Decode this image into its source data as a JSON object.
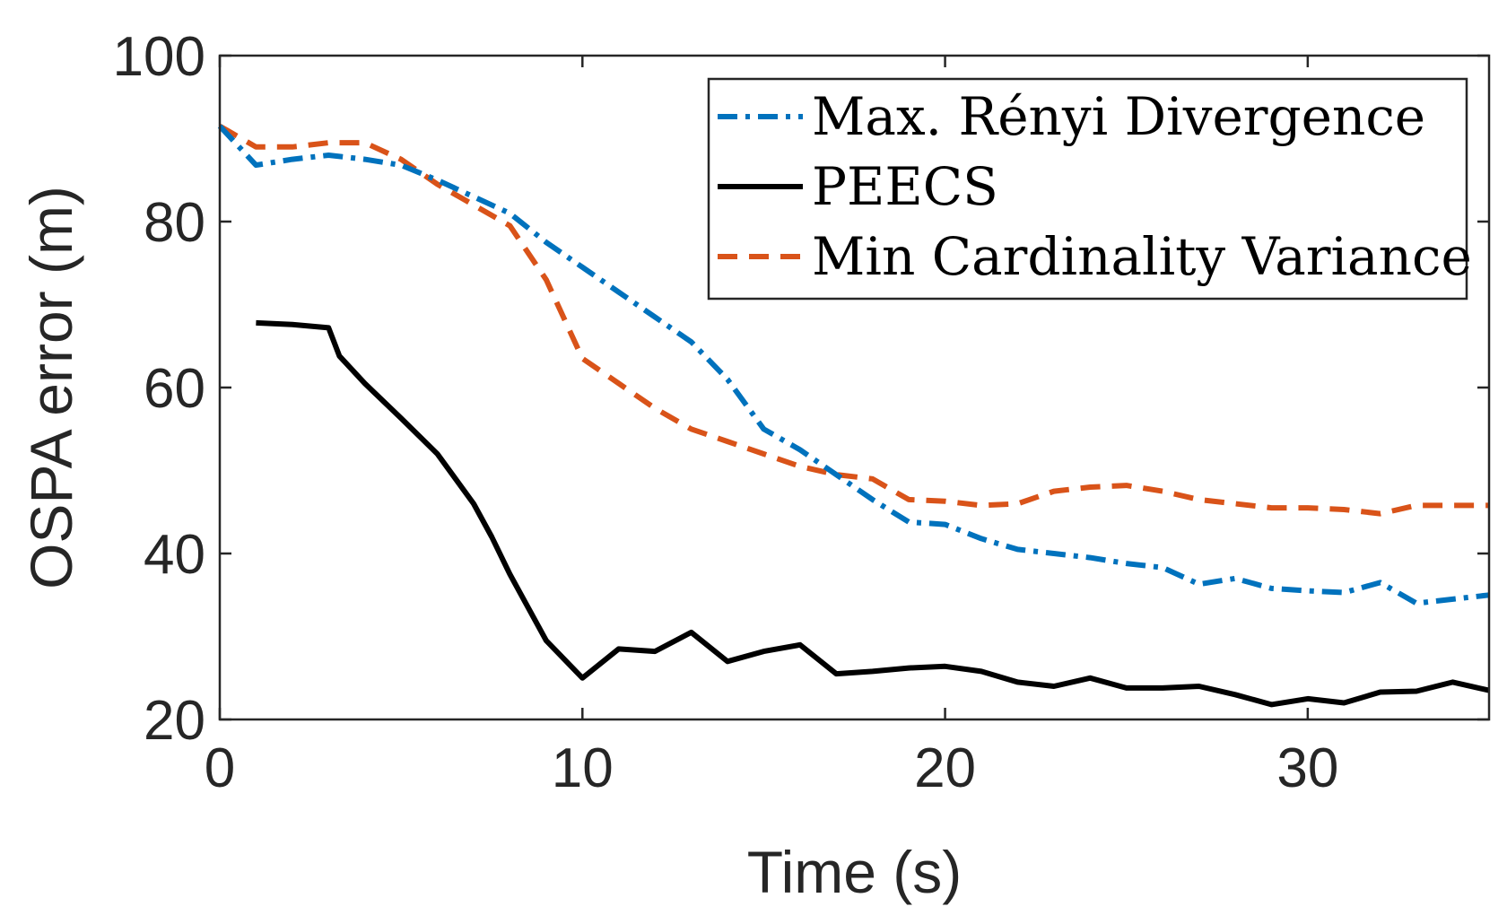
{
  "chart_data": {
    "type": "line",
    "title": "",
    "xlabel": "Time (s)",
    "ylabel": "OSPA error (m)",
    "xlim": [
      0,
      35
    ],
    "ylim": [
      20,
      100
    ],
    "xticks": [
      0,
      10,
      20,
      30
    ],
    "yticks": [
      20,
      40,
      60,
      80,
      100
    ],
    "grid": false,
    "legend_position": "top-right",
    "series": [
      {
        "name": "Max. Rényi Divergence",
        "color": "#0072BD",
        "style": "dash-dot",
        "x": [
          0,
          1,
          2,
          3,
          4,
          5,
          6,
          7,
          8,
          9,
          10,
          11,
          12,
          13,
          14,
          15,
          16,
          17,
          18,
          19,
          20,
          21,
          22,
          23,
          24,
          25,
          26,
          27,
          28,
          29,
          30,
          31,
          32,
          33,
          34,
          35
        ],
        "y": [
          91.5,
          86.8,
          87.5,
          88.0,
          87.5,
          86.8,
          85.0,
          83.0,
          81.0,
          77.5,
          74.5,
          71.5,
          68.5,
          65.5,
          61.0,
          55.0,
          52.5,
          49.5,
          46.5,
          43.8,
          43.5,
          41.8,
          40.5,
          40.0,
          39.5,
          38.8,
          38.3,
          36.3,
          37.0,
          35.8,
          35.5,
          35.3,
          36.5,
          34.0,
          34.5,
          35.0
        ]
      },
      {
        "name": "PEECS",
        "color": "#000000",
        "style": "solid",
        "x": [
          1,
          2,
          3,
          3.3,
          4,
          5,
          6,
          7,
          7.5,
          8,
          9,
          10,
          11,
          12,
          13,
          14,
          15,
          16,
          17,
          18,
          19,
          20,
          21,
          22,
          23,
          24,
          25,
          26,
          27,
          28,
          29,
          30,
          31,
          32,
          33,
          34,
          35
        ],
        "y": [
          67.8,
          67.6,
          67.2,
          63.8,
          60.5,
          56.3,
          52.0,
          46.0,
          42.0,
          37.5,
          29.5,
          25.0,
          28.5,
          28.2,
          30.5,
          27.0,
          28.2,
          29.0,
          25.5,
          25.8,
          26.2,
          26.4,
          25.8,
          24.5,
          24.0,
          25.0,
          23.8,
          23.8,
          24.0,
          23.0,
          21.8,
          22.5,
          22.0,
          23.3,
          23.4,
          24.5,
          23.5
        ]
      },
      {
        "name": "Min Cardinality Variance",
        "color": "#D95319",
        "style": "dashed",
        "x": [
          0,
          1,
          2,
          3,
          4,
          5,
          6,
          7,
          8,
          9,
          10,
          11,
          12,
          13,
          14,
          15,
          16,
          17,
          18,
          19,
          20,
          21,
          22,
          23,
          24,
          25,
          26,
          27,
          28,
          29,
          30,
          31,
          32,
          33,
          34,
          35
        ],
        "y": [
          91.5,
          89.0,
          89.0,
          89.5,
          89.5,
          87.5,
          84.5,
          82.0,
          79.5,
          73.0,
          63.5,
          60.5,
          57.5,
          55.0,
          53.5,
          52.0,
          50.5,
          49.5,
          49.0,
          46.5,
          46.3,
          45.8,
          46.0,
          47.5,
          48.0,
          48.2,
          47.5,
          46.5,
          46.0,
          45.5,
          45.5,
          45.3,
          44.8,
          45.8,
          45.8,
          45.8
        ]
      }
    ]
  }
}
